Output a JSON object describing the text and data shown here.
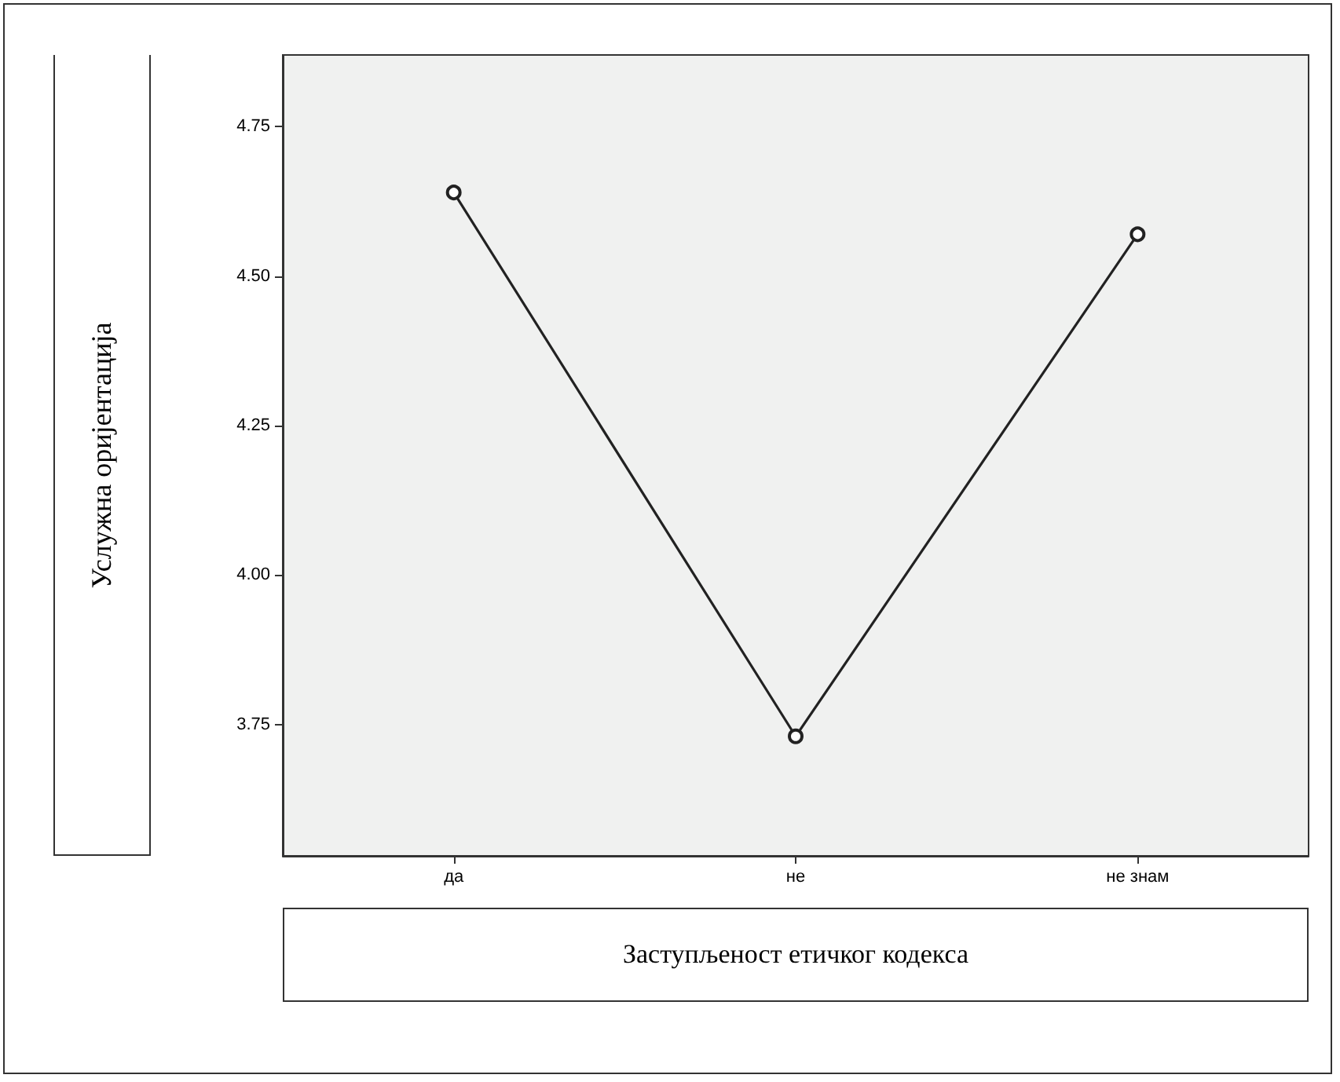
{
  "chart_data": {
    "type": "line",
    "xlabel": "Заступљеност етичког кодекса",
    "ylabel": "Услужна оријентација",
    "categories": [
      "да",
      "не",
      "не знам"
    ],
    "values": [
      4.64,
      3.73,
      4.57
    ],
    "color": "#222222",
    "ylim": [
      3.53,
      4.87
    ],
    "yticks": [
      {
        "value": 3.75,
        "label": "3.75"
      },
      {
        "value": 4.0,
        "label": "4.00"
      },
      {
        "value": 4.25,
        "label": "4.25"
      },
      {
        "value": 4.5,
        "label": "4.50"
      },
      {
        "value": 4.75,
        "label": "4.75"
      }
    ],
    "grid": false,
    "marker": "circle",
    "line_style": "solid"
  }
}
